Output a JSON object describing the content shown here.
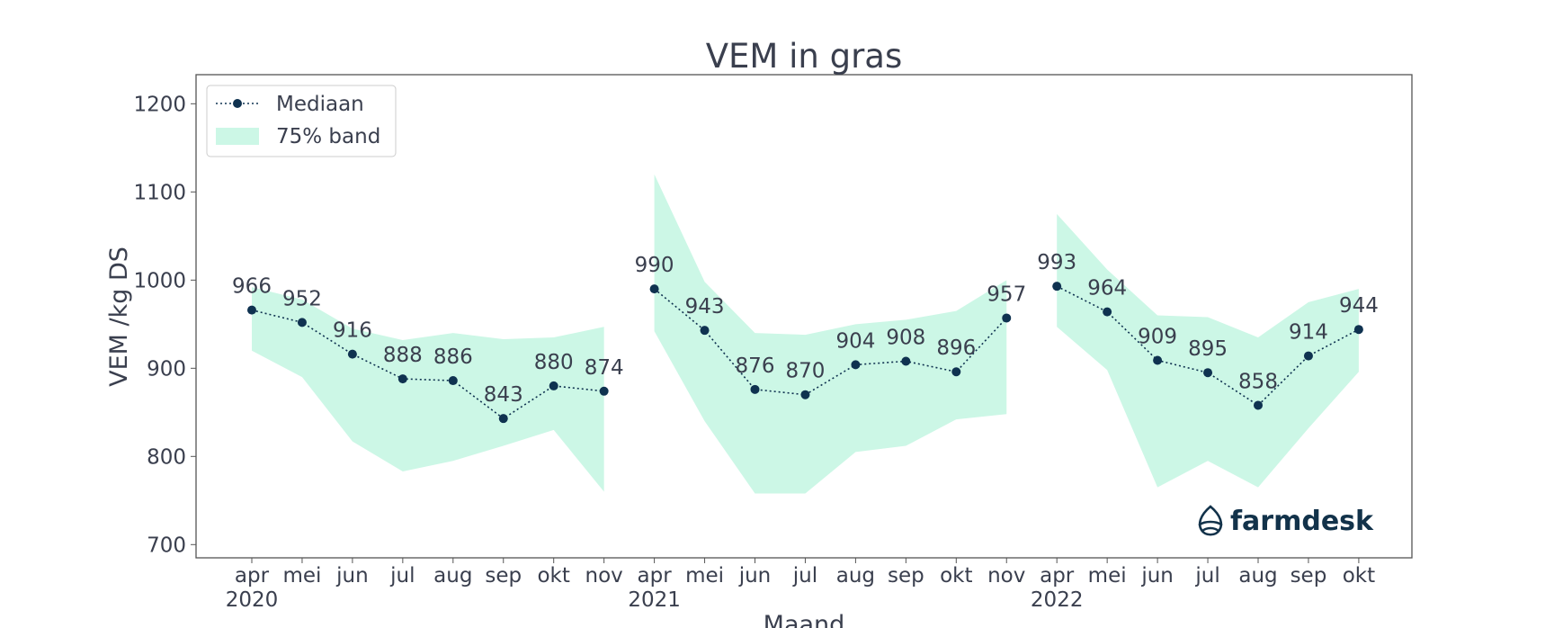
{
  "chart_data": {
    "type": "line",
    "title": "VEM in gras",
    "xlabel": "Maand",
    "ylabel": "VEM /kg DS",
    "ylim": [
      685,
      1233
    ],
    "yticks": [
      700,
      800,
      900,
      1000,
      1100,
      1200
    ],
    "months": [
      "apr",
      "mei",
      "jun",
      "jul",
      "aug",
      "sep",
      "okt",
      "nov",
      "apr",
      "mei",
      "jun",
      "jul",
      "aug",
      "sep",
      "okt",
      "nov",
      "apr",
      "mei",
      "jun",
      "jul",
      "aug",
      "sep",
      "okt"
    ],
    "years": [
      {
        "label": "2020",
        "index": 0
      },
      {
        "label": "2021",
        "index": 8
      },
      {
        "label": "2022",
        "index": 16
      }
    ],
    "legend": {
      "position": "top-left",
      "median_label": "Mediaan",
      "band_label": "75% band"
    },
    "series": [
      {
        "name": "2020",
        "x": [
          0,
          1,
          2,
          3,
          4,
          5,
          6,
          7
        ],
        "median": [
          966,
          952,
          916,
          888,
          886,
          843,
          880,
          874
        ],
        "band_low": [
          920,
          890,
          817,
          783,
          795,
          812,
          830,
          760
        ],
        "band_high": [
          992,
          978,
          945,
          932,
          940,
          933,
          935,
          947
        ]
      },
      {
        "name": "2021",
        "x": [
          8,
          9,
          10,
          11,
          12,
          13,
          14,
          15
        ],
        "median": [
          990,
          943,
          876,
          870,
          904,
          908,
          896,
          957
        ],
        "band_low": [
          942,
          840,
          758,
          758,
          805,
          812,
          842,
          848
        ],
        "band_high": [
          1120,
          998,
          940,
          938,
          950,
          955,
          965,
          1000
        ]
      },
      {
        "name": "2022",
        "x": [
          16,
          17,
          18,
          19,
          20,
          21,
          22
        ],
        "median": [
          993,
          964,
          909,
          895,
          858,
          914,
          944
        ],
        "band_low": [
          947,
          898,
          765,
          795,
          765,
          832,
          896
        ],
        "band_high": [
          1075,
          1012,
          960,
          958,
          935,
          975,
          990
        ]
      }
    ],
    "colors": {
      "median": "#0f3250",
      "band": "#ccf7e6",
      "text": "#3a3f4e",
      "frame": "#555555"
    }
  },
  "brand": {
    "name": "farmdesk"
  }
}
